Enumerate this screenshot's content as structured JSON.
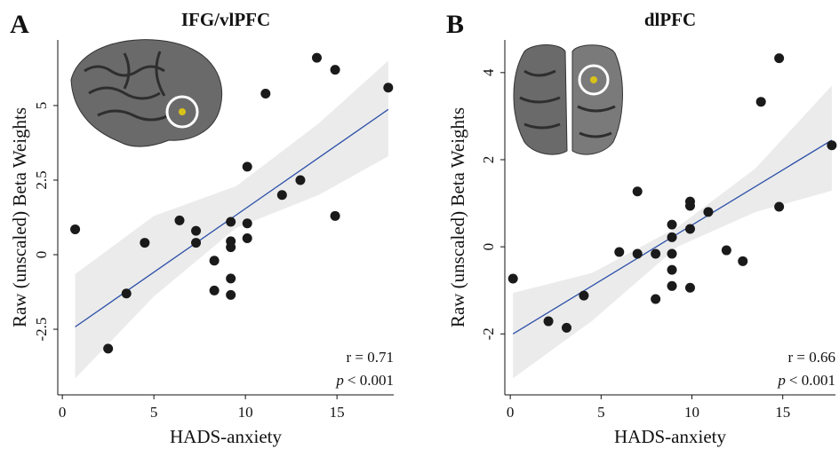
{
  "chart_data": [
    {
      "type": "scatter",
      "panel_label": "A",
      "title": "IFG/vlPFC",
      "xlabel": "HADS-anxiety",
      "ylabel": "Raw (unscaled) Beta Weights",
      "x": [
        0.7,
        2.5,
        3.5,
        4.5,
        6.4,
        7.3,
        7.3,
        8.3,
        8.3,
        9.2,
        9.2,
        9.2,
        9.2,
        9.2,
        10.1,
        10.1,
        10.1,
        11.1,
        12.0,
        13.0,
        13.9,
        14.9,
        14.9,
        17.8
      ],
      "values": [
        0.85,
        -3.15,
        -1.3,
        0.4,
        1.15,
        0.8,
        0.4,
        -0.2,
        -1.2,
        1.1,
        0.45,
        0.25,
        -0.8,
        -1.35,
        2.95,
        1.05,
        0.55,
        5.4,
        2.0,
        2.5,
        6.6,
        6.2,
        1.3,
        5.6
      ],
      "color": "#1a1a1a",
      "trend": {
        "x": [
          0.7,
          17.8
        ],
        "y": [
          -2.42,
          4.87
        ],
        "color": "#2b4fa8"
      },
      "band": {
        "x": [
          0.7,
          5,
          9.5,
          14,
          17.8
        ],
        "upper": [
          -0.65,
          1.3,
          2.3,
          4.4,
          6.5
        ],
        "lower": [
          -4.15,
          -1.4,
          0.9,
          2.0,
          3.3
        ],
        "color": "#ebebeb"
      },
      "stat_r": "r = 0.71",
      "stat_p": {
        "symbol": "p",
        "text": "< 0.001"
      },
      "xlim": [
        -0.25,
        18.1
      ],
      "ylim": [
        -4.7,
        7.2
      ],
      "xticks": [
        0,
        5,
        10,
        15
      ],
      "yticks": [
        -2.5,
        0,
        2.5,
        5
      ]
    },
    {
      "type": "scatter",
      "panel_label": "B",
      "title": "dlPFC",
      "xlabel": "HADS-anxiety",
      "ylabel": "Raw (unscaled) Beta Weights",
      "x": [
        0.15,
        2.1,
        3.1,
        4.05,
        6.0,
        7.0,
        7.0,
        8.0,
        8.0,
        8.9,
        8.9,
        8.9,
        8.9,
        8.9,
        9.9,
        9.9,
        9.9,
        9.9,
        10.9,
        11.9,
        12.8,
        13.8,
        14.8,
        14.8,
        17.7
      ],
      "values": [
        -0.73,
        -1.71,
        -1.86,
        -1.12,
        -0.12,
        1.27,
        -0.16,
        -0.16,
        -1.2,
        0.51,
        0.22,
        -0.16,
        -0.53,
        -0.9,
        1.04,
        0.94,
        0.41,
        -0.94,
        0.8,
        -0.08,
        -0.33,
        3.33,
        4.33,
        0.92,
        2.33
      ],
      "color": "#1a1a1a",
      "trend": {
        "x": [
          0.15,
          17.7
        ],
        "y": [
          -2.0,
          2.45
        ],
        "color": "#2b4fa8"
      },
      "band": {
        "x": [
          0.15,
          4.5,
          9.2,
          13.5,
          17.7
        ],
        "upper": [
          -1.06,
          -0.6,
          0.45,
          1.8,
          3.7
        ],
        "lower": [
          -3.02,
          -1.7,
          0.0,
          0.8,
          1.29
        ],
        "color": "#ebebeb"
      },
      "stat_r": "r = 0.66",
      "stat_p": {
        "symbol": "p",
        "text": "< 0.001"
      },
      "xlim": [
        -0.3,
        17.9
      ],
      "ylim": [
        -3.4,
        4.75
      ],
      "xticks": [
        0,
        5,
        10,
        15
      ],
      "yticks": [
        -2,
        0,
        2,
        4
      ]
    }
  ]
}
